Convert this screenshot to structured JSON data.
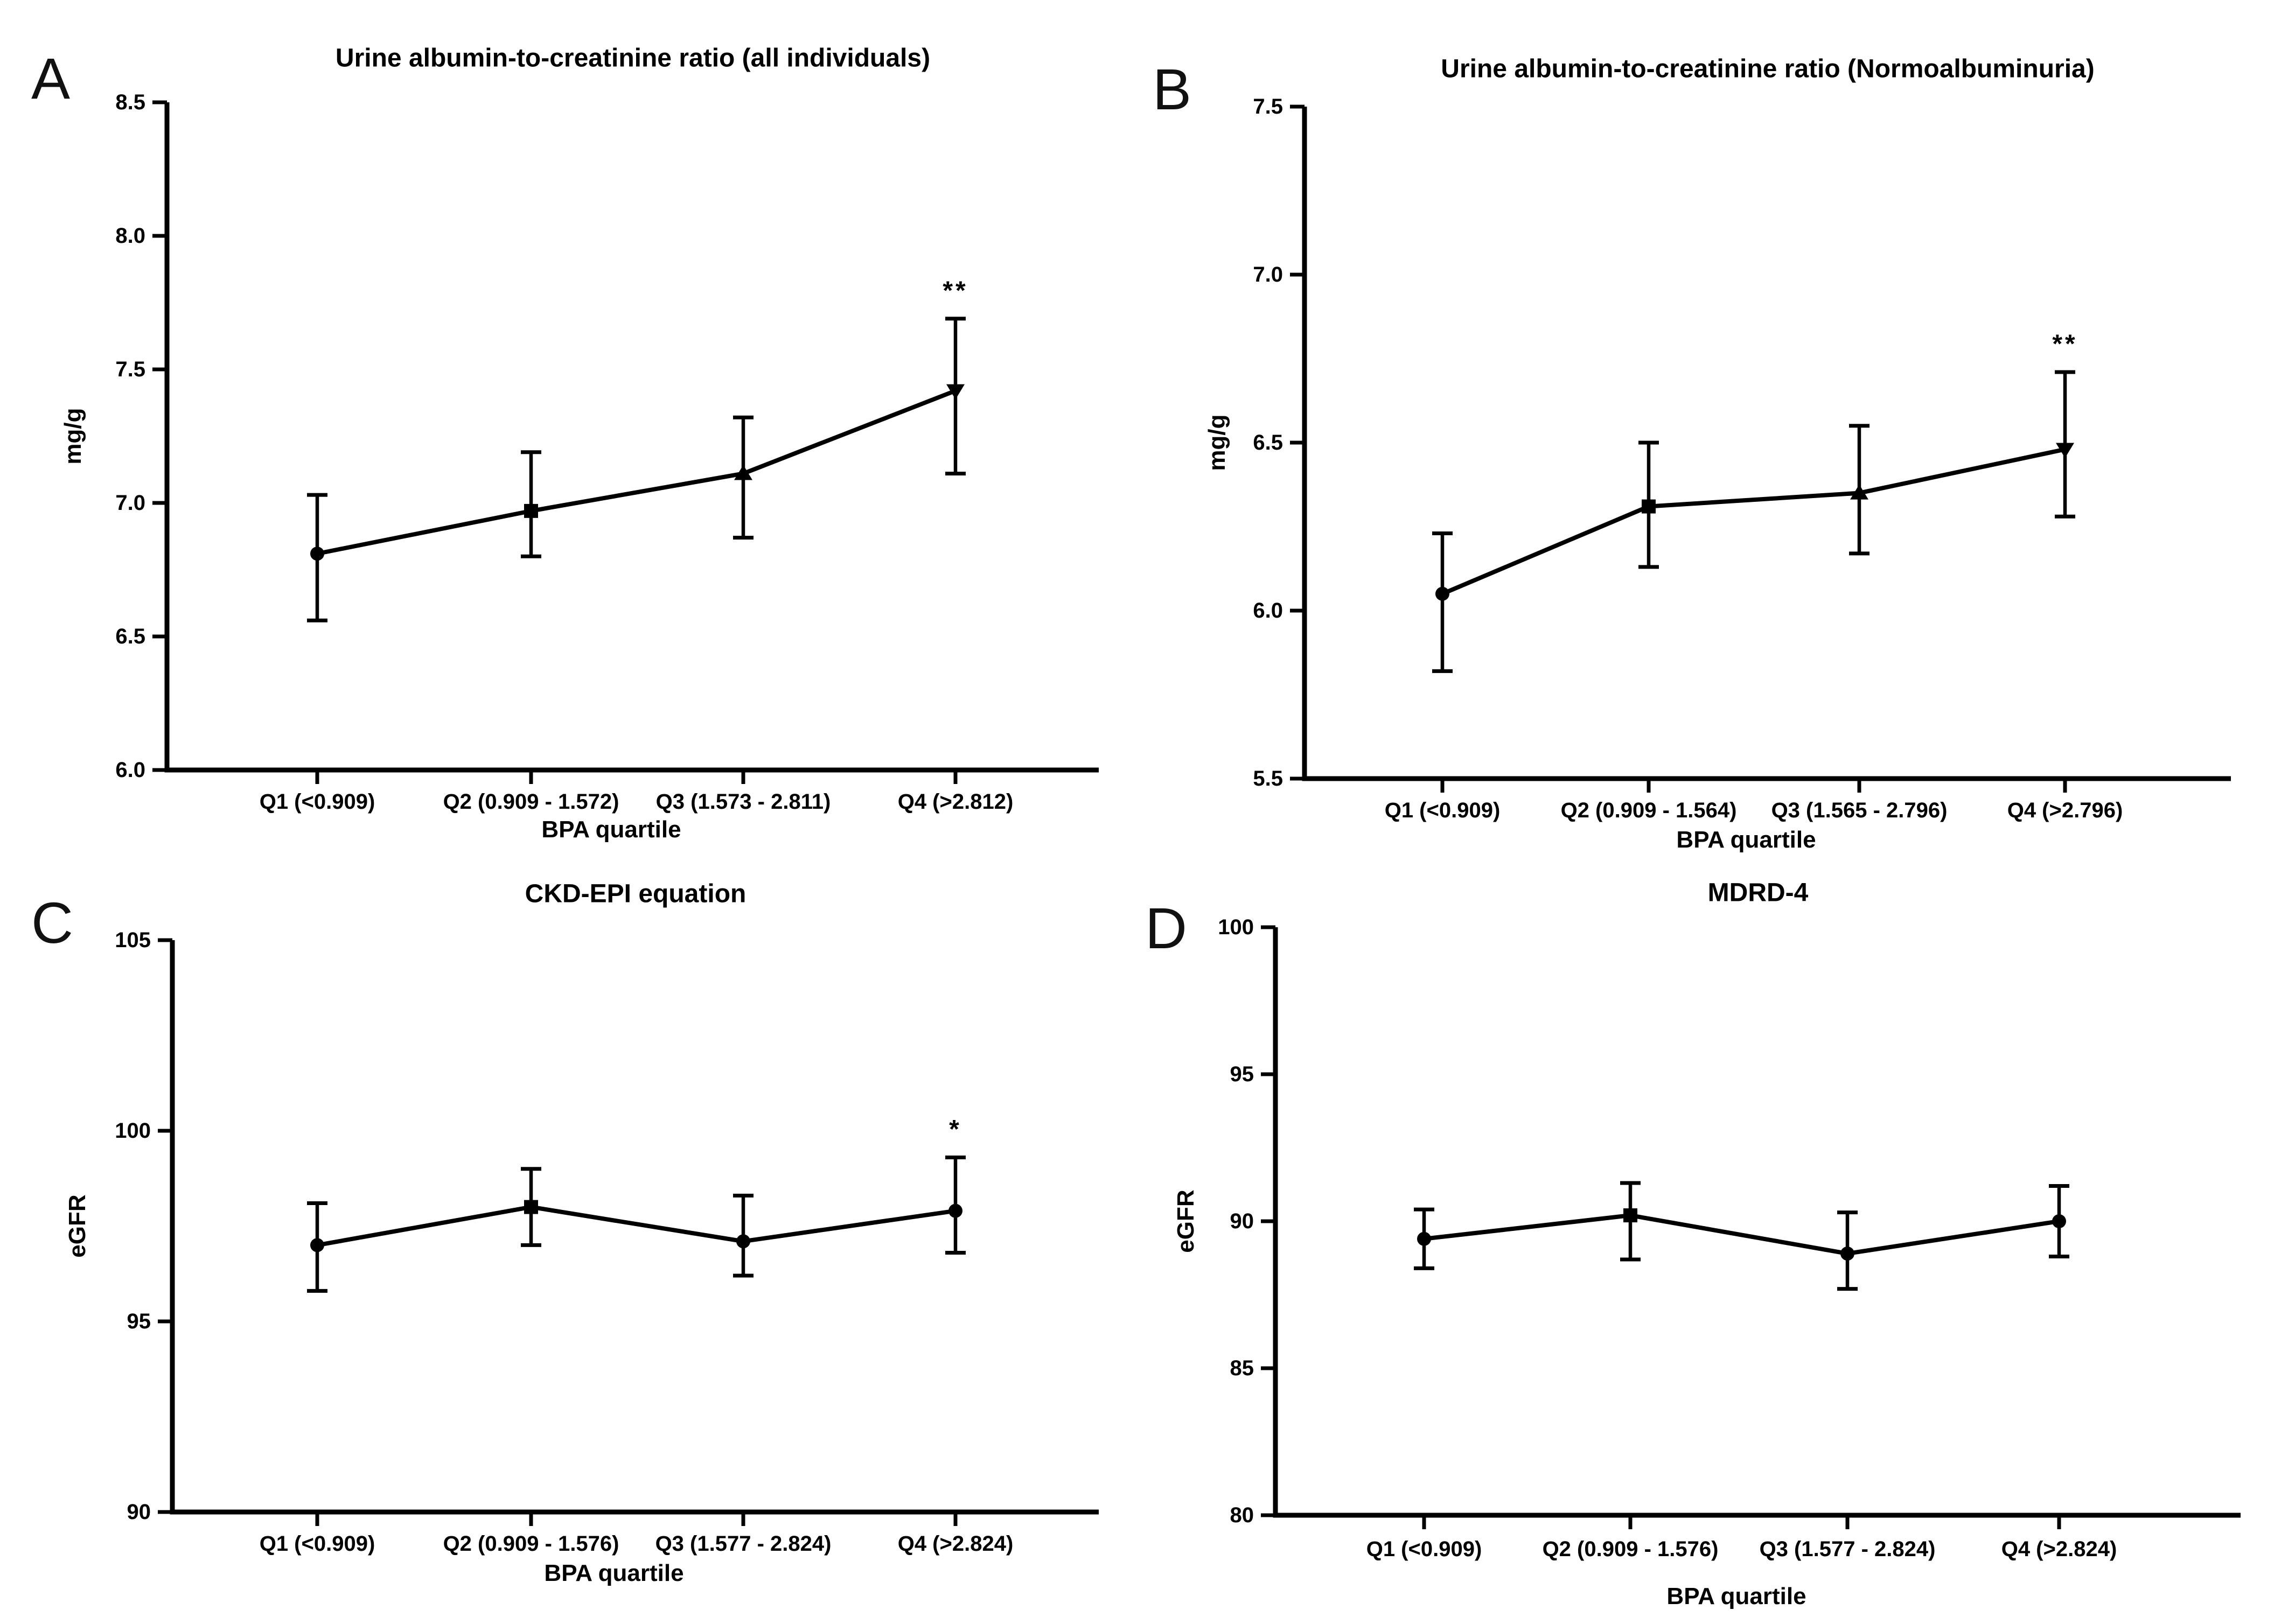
{
  "page": {
    "background": "#ffffff",
    "ink": "#000000"
  },
  "panel_letters": {
    "a": "A",
    "b": "B",
    "c": "C",
    "d": "D"
  },
  "chart_data": [
    {
      "type": "line",
      "panel": "A",
      "letter": "A",
      "title": "Urine albumin-to-creatinine ratio (all individuals)",
      "ylabel": "mg/g",
      "xlabel": "BPA quartile",
      "ylim": [
        6.0,
        8.5
      ],
      "grid": false,
      "legend_position": "none",
      "error_bars": true,
      "yticks": [
        {
          "value": 6.0,
          "label": "6.0"
        },
        {
          "value": 6.5,
          "label": "6.5"
        },
        {
          "value": 7.0,
          "label": "7.0"
        },
        {
          "value": 7.5,
          "label": "7.5"
        },
        {
          "value": 8.0,
          "label": "8.0"
        },
        {
          "value": 8.5,
          "label": "8.5"
        }
      ],
      "categories": [
        "Q1 (<0.909)",
        "Q2 (0.909 - 1.572)",
        "Q3 (1.573 - 2.811)",
        "Q4 (>2.812)"
      ],
      "points": [
        {
          "category": "Q1 (<0.909)",
          "mean": 6.81,
          "lo": 6.56,
          "hi": 7.03,
          "marker": "circle",
          "sig": ""
        },
        {
          "category": "Q2 (0.909 - 1.572)",
          "mean": 6.97,
          "lo": 6.8,
          "hi": 7.19,
          "marker": "square",
          "sig": ""
        },
        {
          "category": "Q3 (1.573 - 2.811)",
          "mean": 7.11,
          "lo": 6.87,
          "hi": 7.32,
          "marker": "triangle-up",
          "sig": ""
        },
        {
          "category": "Q4 (>2.812)",
          "mean": 7.42,
          "lo": 7.11,
          "hi": 7.69,
          "marker": "triangle-down",
          "sig": "**"
        }
      ]
    },
    {
      "type": "line",
      "panel": "B",
      "letter": "B",
      "title": "Urine albumin-to-creatinine ratio (Normoalbuminuria)",
      "ylabel": "mg/g",
      "xlabel": "BPA quartile",
      "ylim": [
        5.5,
        7.5
      ],
      "grid": false,
      "legend_position": "none",
      "error_bars": true,
      "yticks": [
        {
          "value": 5.5,
          "label": "5.5"
        },
        {
          "value": 6.0,
          "label": "6.0"
        },
        {
          "value": 6.5,
          "label": "6.5"
        },
        {
          "value": 7.0,
          "label": "7.0"
        },
        {
          "value": 7.5,
          "label": "7.5"
        }
      ],
      "categories": [
        "Q1 (<0.909)",
        "Q2 (0.909 - 1.564)",
        "Q3 (1.565 - 2.796)",
        "Q4 (>2.796)"
      ],
      "points": [
        {
          "category": "Q1 (<0.909)",
          "mean": 6.05,
          "lo": 5.82,
          "hi": 6.23,
          "marker": "circle",
          "sig": ""
        },
        {
          "category": "Q2 (0.909 - 1.564)",
          "mean": 6.31,
          "lo": 6.13,
          "hi": 6.5,
          "marker": "square",
          "sig": ""
        },
        {
          "category": "Q3 (1.565 - 2.796)",
          "mean": 6.35,
          "lo": 6.17,
          "hi": 6.55,
          "marker": "triangle-up",
          "sig": ""
        },
        {
          "category": "Q4 (>2.796)",
          "mean": 6.48,
          "lo": 6.28,
          "hi": 6.71,
          "marker": "triangle-down",
          "sig": "**"
        }
      ]
    },
    {
      "type": "line",
      "panel": "C",
      "letter": "C",
      "title": "CKD-EPI equation",
      "ylabel": "eGFR",
      "xlabel": "BPA quartile",
      "ylim": [
        90,
        105
      ],
      "grid": false,
      "legend_position": "none",
      "error_bars": true,
      "yticks": [
        {
          "value": 90,
          "label": "90"
        },
        {
          "value": 95,
          "label": "95"
        },
        {
          "value": 100,
          "label": "100"
        },
        {
          "value": 105,
          "label": "105"
        }
      ],
      "categories": [
        "Q1 (<0.909)",
        "Q2 (0.909 - 1.576)",
        "Q3 (1.577 - 2.824)",
        "Q4 (>2.824)"
      ],
      "points": [
        {
          "category": "Q1 (<0.909)",
          "mean": 97.0,
          "lo": 95.8,
          "hi": 98.1,
          "marker": "circle",
          "sig": ""
        },
        {
          "category": "Q2 (0.909 - 1.576)",
          "mean": 98.0,
          "lo": 97.0,
          "hi": 99.0,
          "marker": "square",
          "sig": ""
        },
        {
          "category": "Q3 (1.577 - 2.824)",
          "mean": 97.1,
          "lo": 96.2,
          "hi": 98.3,
          "marker": "circle",
          "sig": ""
        },
        {
          "category": "Q4 (>2.824)",
          "mean": 97.9,
          "lo": 96.8,
          "hi": 99.3,
          "marker": "circle",
          "sig": "*"
        }
      ]
    },
    {
      "type": "line",
      "panel": "D",
      "letter": "D",
      "title": "MDRD-4",
      "ylabel": "eGFR",
      "xlabel": "BPA quartile",
      "ylim": [
        80,
        100
      ],
      "grid": false,
      "legend_position": "none",
      "error_bars": true,
      "yticks": [
        {
          "value": 80,
          "label": "80"
        },
        {
          "value": 85,
          "label": "85"
        },
        {
          "value": 90,
          "label": "90"
        },
        {
          "value": 95,
          "label": "95"
        },
        {
          "value": 100,
          "label": "100"
        }
      ],
      "categories": [
        "Q1 (<0.909)",
        "Q2 (0.909 - 1.576)",
        "Q3 (1.577 - 2.824)",
        "Q4 (>2.824)"
      ],
      "points": [
        {
          "category": "Q1 (<0.909)",
          "mean": 89.4,
          "lo": 88.4,
          "hi": 90.4,
          "marker": "circle",
          "sig": ""
        },
        {
          "category": "Q2 (0.909 - 1.576)",
          "mean": 90.2,
          "lo": 88.7,
          "hi": 91.3,
          "marker": "square",
          "sig": ""
        },
        {
          "category": "Q3 (1.577 - 2.824)",
          "mean": 88.9,
          "lo": 87.7,
          "hi": 90.3,
          "marker": "circle",
          "sig": ""
        },
        {
          "category": "Q4 (>2.824)",
          "mean": 90.0,
          "lo": 88.8,
          "hi": 91.2,
          "marker": "circle",
          "sig": ""
        }
      ]
    }
  ]
}
